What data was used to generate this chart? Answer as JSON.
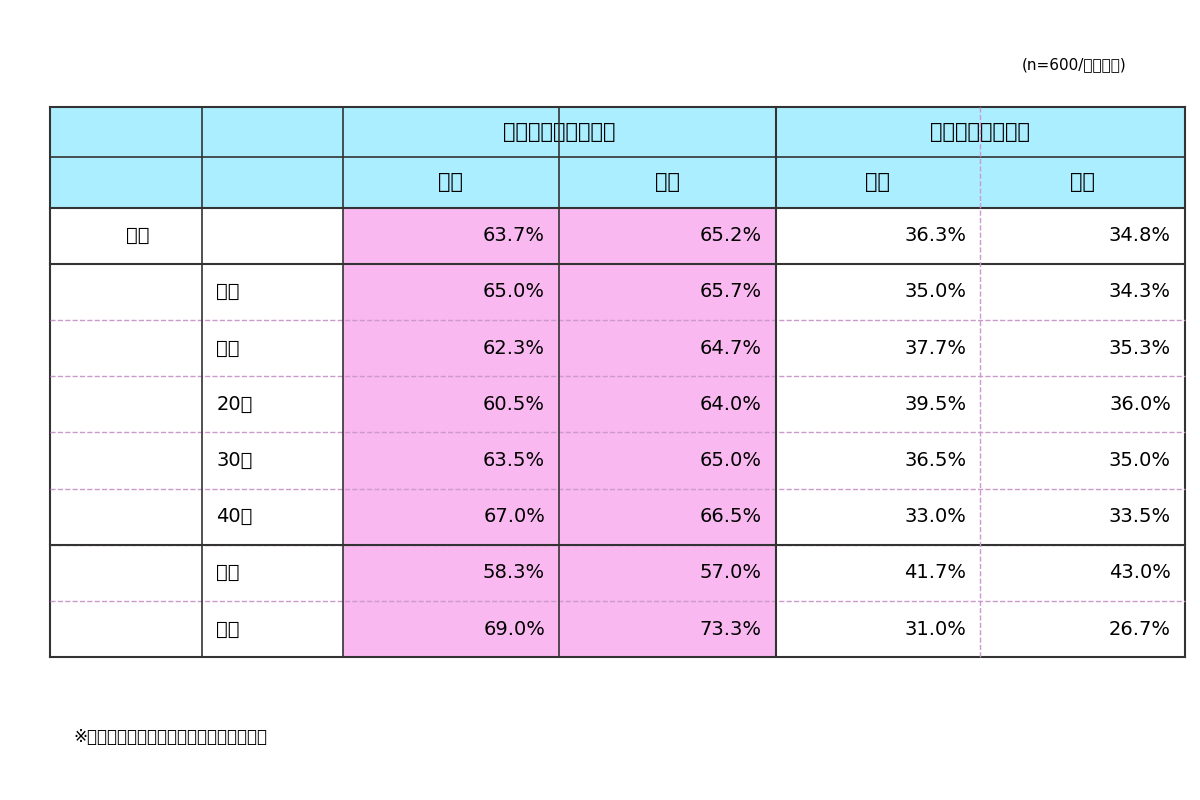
{
  "note": "(n=600/単一回答)",
  "footer": "※背景色つきは半数の回答率を超える数値",
  "header1_left": "今後も勤め続けたい",
  "header1_right": "勤め続けたくない",
  "header2": [
    "今回",
    "前回",
    "今回",
    "前回"
  ],
  "rows": [
    {
      "label1": "全体",
      "label2": "",
      "vals": [
        "63.7%",
        "65.2%",
        "36.3%",
        "34.8%"
      ],
      "highlight": [
        true,
        true,
        false,
        false
      ]
    },
    {
      "label1": "",
      "label2": "男性",
      "vals": [
        "65.0%",
        "65.7%",
        "35.0%",
        "34.3%"
      ],
      "highlight": [
        true,
        true,
        false,
        false
      ]
    },
    {
      "label1": "",
      "label2": "女性",
      "vals": [
        "62.3%",
        "64.7%",
        "37.7%",
        "35.3%"
      ],
      "highlight": [
        true,
        true,
        false,
        false
      ]
    },
    {
      "label1": "",
      "label2": "20代",
      "vals": [
        "60.5%",
        "64.0%",
        "39.5%",
        "36.0%"
      ],
      "highlight": [
        true,
        true,
        false,
        false
      ]
    },
    {
      "label1": "",
      "label2": "30代",
      "vals": [
        "63.5%",
        "65.0%",
        "36.5%",
        "35.0%"
      ],
      "highlight": [
        true,
        true,
        false,
        false
      ]
    },
    {
      "label1": "",
      "label2": "40代",
      "vals": [
        "67.0%",
        "66.5%",
        "33.0%",
        "33.5%"
      ],
      "highlight": [
        true,
        true,
        false,
        false
      ]
    },
    {
      "label1": "",
      "label2": "未婚",
      "vals": [
        "58.3%",
        "57.0%",
        "41.7%",
        "43.0%"
      ],
      "highlight": [
        true,
        true,
        false,
        false
      ]
    },
    {
      "label1": "",
      "label2": "既婚",
      "vals": [
        "69.0%",
        "73.3%",
        "31.0%",
        "26.7%"
      ],
      "highlight": [
        true,
        true,
        false,
        false
      ]
    }
  ],
  "color_header": "#aaeeff",
  "color_highlight": "#f9b8f0",
  "color_white": "#ffffff",
  "color_border_strong": "#333333",
  "color_border_dashed": "#cc99cc",
  "color_border_dashed2": "#aaaacc",
  "bg_color": "#ffffff",
  "title_fontsize": 13,
  "cell_fontsize": 14,
  "header_fontsize": 15
}
